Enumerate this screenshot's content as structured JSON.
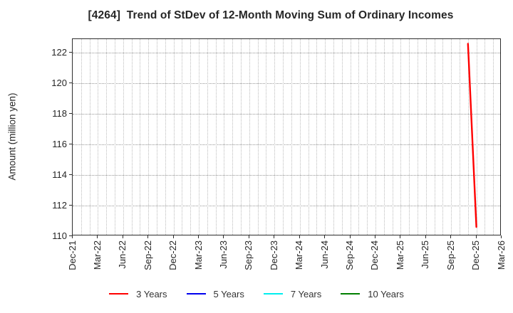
{
  "title": "[4264]  Trend of StDev of 12-Month Moving Sum of Ordinary Incomes",
  "y_axis": {
    "label": "Amount (million yen)",
    "ticks": [
      110,
      112,
      114,
      116,
      118,
      120,
      122
    ],
    "min": 110,
    "max": 122.9
  },
  "x_axis": {
    "tick_labels": [
      "Dec-21",
      "Mar-22",
      "Jun-22",
      "Sep-22",
      "Dec-22",
      "Mar-23",
      "Jun-23",
      "Sep-23",
      "Dec-23",
      "Mar-24",
      "Jun-24",
      "Sep-24",
      "Dec-24",
      "Mar-25",
      "Jun-25",
      "Sep-25",
      "Dec-25",
      "Mar-26"
    ],
    "months_per_tick": 3,
    "months_total": 51
  },
  "legend": {
    "items": [
      {
        "label": "3 Years",
        "color": "#ff0000"
      },
      {
        "label": "5 Years",
        "color": "#0000ee"
      },
      {
        "label": "7 Years",
        "color": "#00eeee"
      },
      {
        "label": "10 Years",
        "color": "#007f00"
      }
    ]
  },
  "chart_data": {
    "type": "line",
    "title": "[4264]  Trend of StDev of 12-Month Moving Sum of Ordinary Incomes",
    "xlabel": "",
    "ylabel": "Amount (million yen)",
    "ylim": [
      110,
      122.9
    ],
    "x_categories": [
      "Dec-21",
      "Mar-22",
      "Jun-22",
      "Sep-22",
      "Dec-22",
      "Mar-23",
      "Jun-23",
      "Sep-23",
      "Dec-23",
      "Mar-24",
      "Jun-24",
      "Sep-24",
      "Dec-24",
      "Mar-25",
      "Jun-25",
      "Sep-25",
      "Dec-25",
      "Mar-26"
    ],
    "grid": true,
    "grid_style": "dotted",
    "legend_position": "bottom",
    "series": [
      {
        "name": "3 Years",
        "color": "#ff0000",
        "points": [
          {
            "label": "Nov-25",
            "month_index": 47,
            "value": 122.6
          },
          {
            "label": "Dec-25",
            "month_index": 48,
            "value": 110.6
          }
        ]
      },
      {
        "name": "5 Years",
        "color": "#0000ee",
        "points": []
      },
      {
        "name": "7 Years",
        "color": "#00eeee",
        "points": []
      },
      {
        "name": "10 Years",
        "color": "#007f00",
        "points": []
      }
    ]
  }
}
